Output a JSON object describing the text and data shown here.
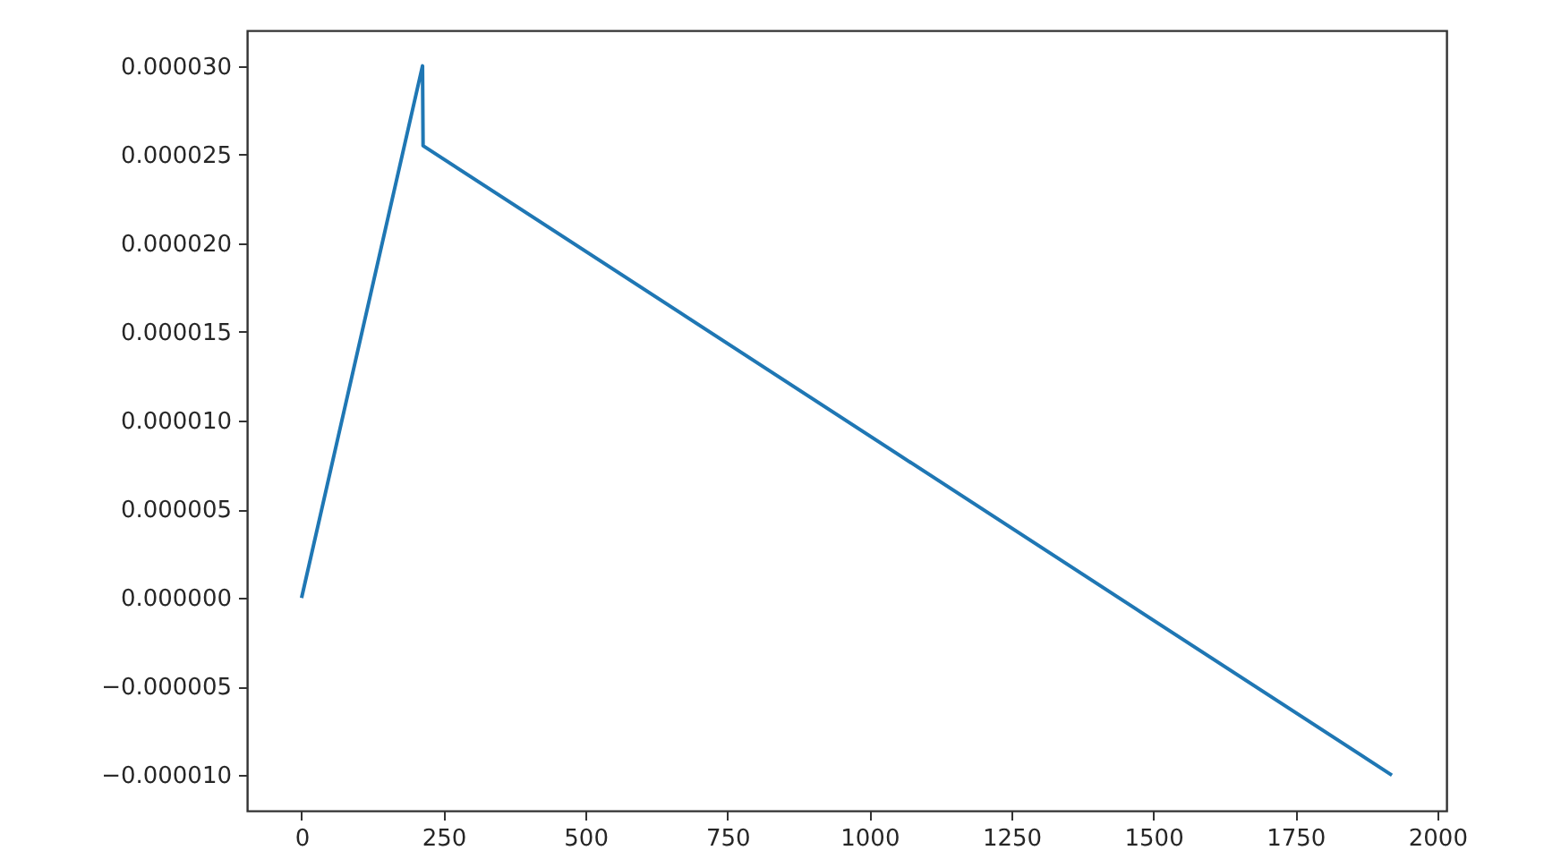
{
  "chart_data": {
    "type": "line",
    "x": [
      0,
      213,
      214,
      1920
    ],
    "series": [
      {
        "color": "#1f77b4",
        "values": [
          0,
          3e-05,
          2.55e-05,
          -1e-05
        ]
      }
    ],
    "xlim": [
      -96,
      2016
    ],
    "xticks": [
      0,
      250,
      500,
      750,
      1000,
      1250,
      1500,
      1750,
      2000
    ],
    "ylim": [
      -1.2e-05,
      3.2e-05
    ],
    "yticks": [
      {
        "value": -1e-05,
        "label": "−0.000010"
      },
      {
        "value": -5e-06,
        "label": "−0.000005"
      },
      {
        "value": 0,
        "label": "0.000000"
      },
      {
        "value": 5e-06,
        "label": "0.000005"
      },
      {
        "value": 1e-05,
        "label": "0.000010"
      },
      {
        "value": 1.5e-05,
        "label": "0.000015"
      },
      {
        "value": 2e-05,
        "label": "0.000020"
      },
      {
        "value": 2.5e-05,
        "label": "0.000025"
      },
      {
        "value": 3e-05,
        "label": "0.000030"
      }
    ],
    "grid": false
  }
}
